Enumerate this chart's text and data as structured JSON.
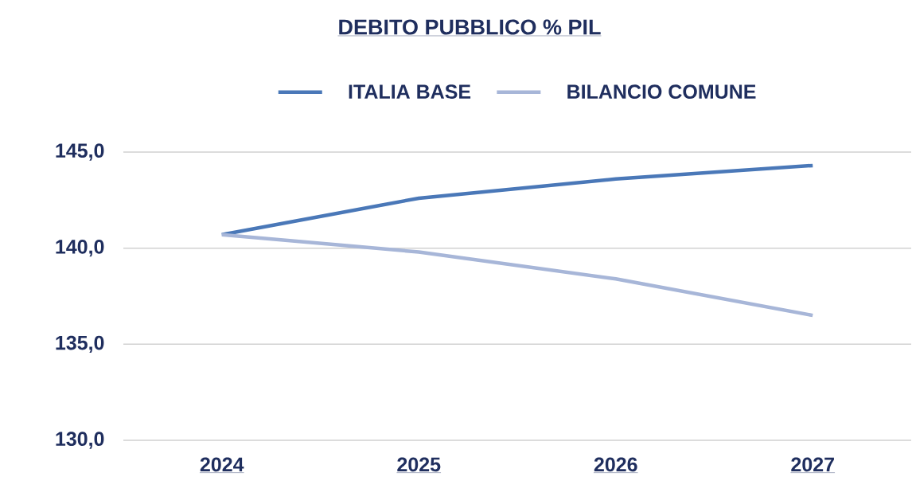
{
  "chart_data": {
    "type": "line",
    "title": "DEBITO PUBBLICO % PIL",
    "categories": [
      "2024",
      "2025",
      "2026",
      "2027"
    ],
    "series": [
      {
        "name": "ITALIA BASE",
        "color": "#4a78b8",
        "values": [
          140.7,
          142.6,
          143.6,
          144.3
        ]
      },
      {
        "name": "BILANCIO COMUNE",
        "color": "#a7b6d8",
        "values": [
          140.7,
          139.8,
          138.4,
          136.5
        ]
      }
    ],
    "ylim": [
      130,
      145
    ],
    "yticks": [
      {
        "value": 130,
        "label": "130,0"
      },
      {
        "value": 135,
        "label": "135,0"
      },
      {
        "value": 140,
        "label": "140,0"
      },
      {
        "value": 145,
        "label": "145,0"
      }
    ],
    "grid": "y",
    "legend": "top",
    "marker": "none",
    "line_style": "solid"
  }
}
